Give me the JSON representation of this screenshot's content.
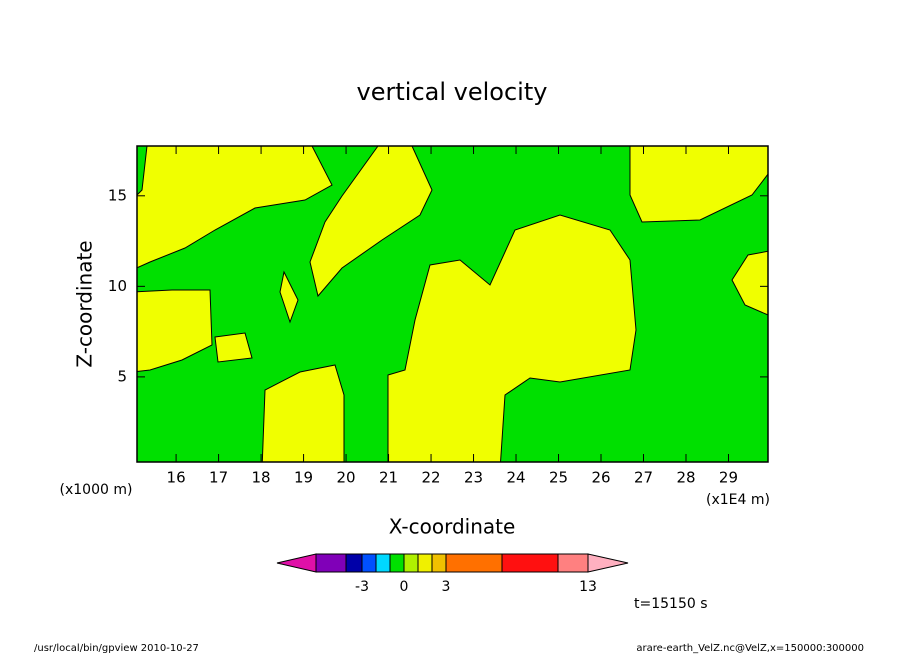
{
  "chart_data": {
    "type": "contour",
    "title": "vertical velocity",
    "xlabel": "X-coordinate",
    "ylabel": "Z-coordinate",
    "xunit": "(x1E4 m)",
    "yunit": "(x1000 m)",
    "xlim": [
      15.08,
      29.93
    ],
    "ylim": [
      0.3,
      17.75
    ],
    "xticks": [
      16,
      17,
      18,
      19,
      20,
      21,
      22,
      23,
      24,
      25,
      26,
      27,
      28,
      29
    ],
    "yticks": [
      5,
      10,
      15
    ],
    "colorbar": {
      "levels": [
        -10,
        -5,
        -3,
        -2,
        -1,
        0,
        1,
        2,
        3,
        5,
        10,
        13
      ],
      "colors": [
        "#e010a8",
        "#8000b8",
        "#0000a8",
        "#0050ff",
        "#00d8ff",
        "#00e000",
        "#b0f000",
        "#f0f000",
        "#f0c000",
        "#ff7000",
        "#ff1010",
        "#ff8080",
        "#ffb0c0"
      ],
      "ticks": [
        -3,
        0,
        3,
        13
      ]
    },
    "time_label": "t=15150 s",
    "footer_left": "/usr/local/bin/gpview  2010-10-27",
    "footer_right": "arare-earth_VelZ.nc@VelZ,x=150000:300000"
  }
}
